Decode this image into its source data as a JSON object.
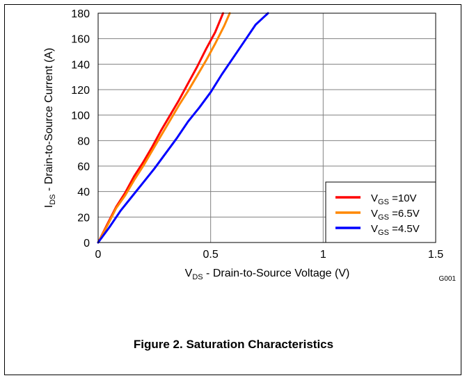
{
  "caption": "Figure 2. Saturation Characteristics",
  "figure_code": "G001",
  "chart_data": {
    "type": "line",
    "title": "",
    "xlabel": {
      "main": "V",
      "sub": "DS",
      "rest": " - Drain-to-Source Voltage (V)"
    },
    "ylabel": {
      "main": "I",
      "sub": "DS",
      "rest": " - Drain-to-Source Current (A)"
    },
    "xlim": [
      0,
      1.5
    ],
    "ylim": [
      0,
      180
    ],
    "xticks": [
      0,
      0.5,
      1,
      1.5
    ],
    "xtick_labels": [
      "0",
      "0.5",
      "1",
      "1.5"
    ],
    "yticks": [
      0,
      20,
      40,
      60,
      80,
      100,
      120,
      140,
      160,
      180
    ],
    "ytick_labels": [
      "0",
      "20",
      "40",
      "60",
      "80",
      "100",
      "120",
      "140",
      "160",
      "180"
    ],
    "grid": true,
    "legend_position": "bottom-right",
    "series": [
      {
        "name": {
          "main": "V",
          "sub": "GS",
          "rest": " =10V"
        },
        "color": "#ff0000",
        "x": [
          0,
          0.04,
          0.08,
          0.12,
          0.16,
          0.2,
          0.24,
          0.28,
          0.32,
          0.36,
          0.4,
          0.44,
          0.48,
          0.52,
          0.555
        ],
        "y": [
          0,
          14,
          28,
          39,
          52,
          63,
          75,
          88,
          100,
          112,
          125,
          138,
          152,
          165,
          180
        ]
      },
      {
        "name": {
          "main": "V",
          "sub": "GS",
          "rest": " =6.5V"
        },
        "color": "#ff8800",
        "x": [
          0,
          0.04,
          0.08,
          0.12,
          0.16,
          0.2,
          0.24,
          0.28,
          0.32,
          0.36,
          0.4,
          0.44,
          0.48,
          0.52,
          0.56,
          0.585
        ],
        "y": [
          0,
          13,
          27,
          37,
          49,
          60,
          72,
          84,
          96,
          108,
          119,
          131,
          143,
          156,
          170,
          180
        ]
      },
      {
        "name": {
          "main": "V",
          "sub": "GS",
          "rest": " =4.5V"
        },
        "color": "#0000ff",
        "x": [
          0,
          0.05,
          0.1,
          0.15,
          0.2,
          0.25,
          0.3,
          0.35,
          0.4,
          0.45,
          0.5,
          0.55,
          0.6,
          0.65,
          0.7,
          0.755
        ],
        "y": [
          0,
          12,
          25,
          36,
          47,
          58,
          70,
          82,
          95,
          106,
          118,
          132,
          145,
          158,
          171,
          180
        ]
      }
    ]
  }
}
